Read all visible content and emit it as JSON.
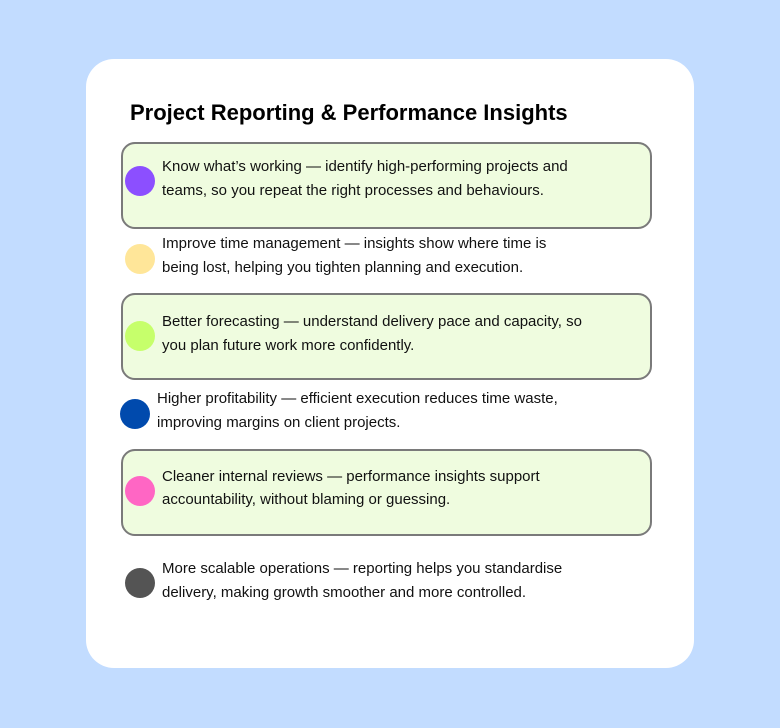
{
  "title": "Project Reporting & Performance Insights",
  "items": [
    {
      "highlighted": true,
      "dot_color": "#8c4fff",
      "lines": [
        "Know what’s working — identify high-performing projects and",
        "teams, so you repeat the right processes and behaviours."
      ]
    },
    {
      "highlighted": false,
      "dot_color": "#ffe699",
      "lines": [
        "Improve time management — insights show where time is",
        "being lost, helping you tighten planning and execution."
      ]
    },
    {
      "highlighted": true,
      "dot_color": "#c6ff6b",
      "lines": [
        "Better forecasting — understand delivery pace and capacity, so",
        "you plan future work more confidently."
      ]
    },
    {
      "highlighted": false,
      "dot_color": "#004aad",
      "lines": [
        "Higher profitability — efficient execution reduces time waste,",
        "improving margins on client projects."
      ]
    },
    {
      "highlighted": true,
      "dot_color": "#ff66c4",
      "lines": [
        "Cleaner internal reviews — performance insights support",
        "accountability, without blaming or guessing."
      ]
    },
    {
      "highlighted": false,
      "dot_color": "#545454",
      "lines": [
        "More scalable operations — reporting helps you standardise",
        "delivery, making growth smoother and more controlled."
      ]
    }
  ],
  "colors": {
    "background": "#c2dcff",
    "card": "#ffffff",
    "highlight_fill": "#effcdf",
    "highlight_border": "#7a7a7a"
  }
}
